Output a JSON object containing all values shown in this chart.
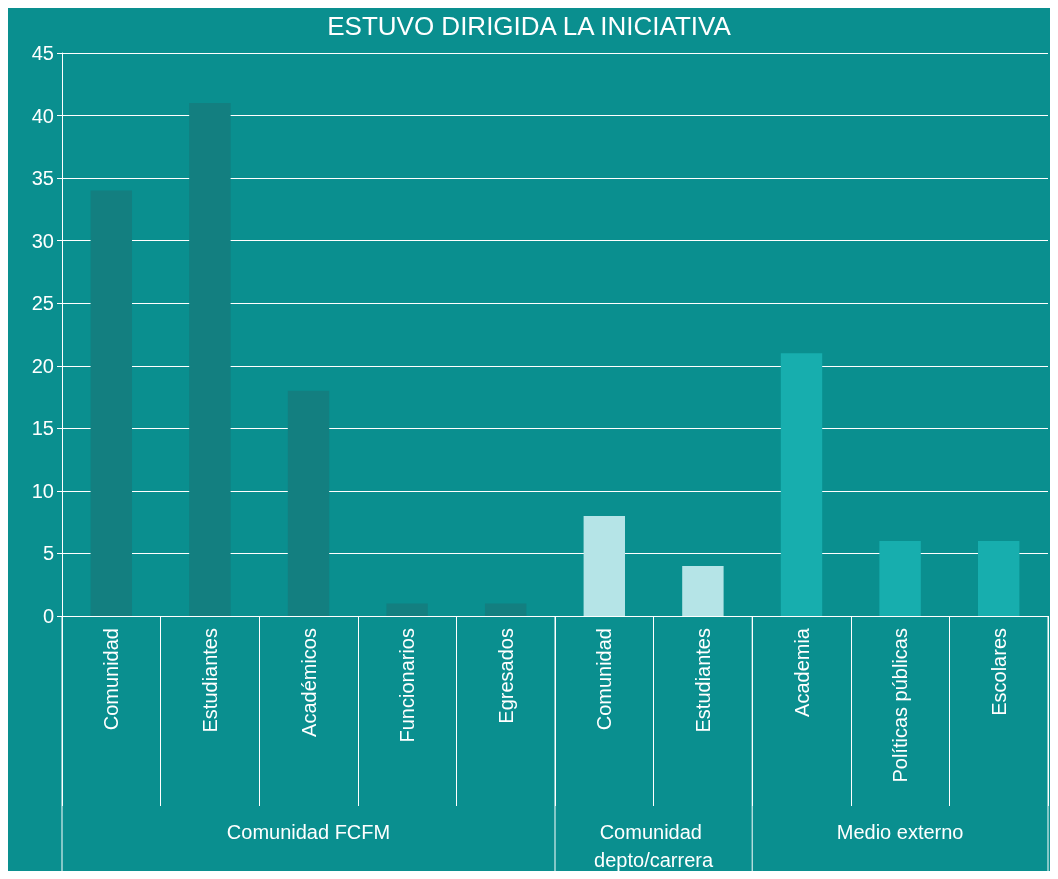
{
  "chart_data": {
    "type": "bar",
    "title": "ESTUVO DIRIGIDA LA INICIATIVA",
    "categories": [
      "Comunidad",
      "Estudiantes",
      "Académicos",
      "Funcionarios",
      "Egresados",
      "Comunidad",
      "Estudiantes",
      "Academia",
      "Políticas públicas",
      "Escolares"
    ],
    "values": [
      34,
      41,
      18,
      1,
      1,
      8,
      4,
      21,
      6,
      6
    ],
    "colors": [
      "#137f80",
      "#137f80",
      "#137f80",
      "#137f80",
      "#137f80",
      "#b5e4e7",
      "#b5e4e7",
      "#17aeae",
      "#17aeae",
      "#17aeae"
    ],
    "annotations": [
      "Comunidad FCFM",
      "Comunidad depto/carrera",
      "Medio externo"
    ],
    "ylim": [
      0,
      45
    ],
    "yticks": [
      0,
      5,
      10,
      15,
      20,
      25,
      30,
      35,
      40,
      45
    ],
    "grid": "y"
  }
}
